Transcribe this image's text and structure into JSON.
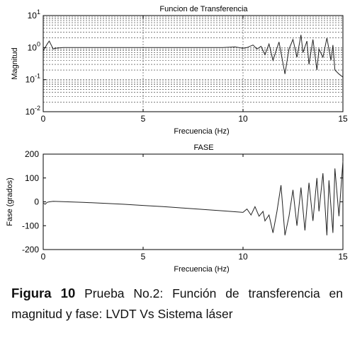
{
  "chart_data": [
    {
      "type": "line",
      "title": "Funcion de Transferencia",
      "xlabel": "Frecuencia (Hz)",
      "ylabel": "Magnitud",
      "xlim": [
        0,
        15
      ],
      "ylim": [
        0.01,
        10
      ],
      "yscale": "log",
      "grid": true,
      "xticks": [
        "0",
        "5",
        "10",
        "15"
      ],
      "yticks": [
        {
          "base": "10",
          "exp": "1",
          "value": 10
        },
        {
          "base": "10",
          "exp": "0",
          "value": 1
        },
        {
          "base": "10",
          "exp": "-1",
          "value": 0.1
        },
        {
          "base": "10",
          "exp": "-2",
          "value": 0.01
        }
      ],
      "series": [
        {
          "x": [
            0,
            0.1,
            0.2,
            0.3,
            0.4,
            0.5,
            0.6,
            1,
            2,
            3,
            4,
            5,
            6,
            7,
            8,
            9,
            9.6,
            10,
            10.2,
            10.5,
            10.7,
            10.9,
            11.1,
            11.3,
            11.5,
            11.8,
            12.1,
            12.3,
            12.5,
            12.7,
            12.9,
            13.0,
            13.2,
            13.3,
            13.5,
            13.7,
            13.8,
            14.0,
            14.2,
            14.4,
            14.5,
            14.6,
            14.8,
            15.0
          ],
          "y": [
            0.8,
            1.0,
            1.3,
            1.6,
            1.2,
            0.9,
            0.95,
            1.0,
            1.0,
            1.0,
            1.0,
            1.0,
            1.0,
            1.0,
            1.0,
            1.0,
            1.05,
            0.95,
            1.0,
            1.2,
            0.9,
            1.1,
            0.6,
            1.3,
            0.4,
            1.5,
            0.15,
            0.9,
            1.8,
            0.5,
            2.5,
            0.7,
            1.6,
            0.3,
            1.8,
            0.2,
            0.9,
            0.5,
            2.0,
            0.4,
            1.2,
            0.2,
            0.15,
            0.12
          ]
        }
      ]
    },
    {
      "type": "line",
      "title": "FASE",
      "xlabel": "Frecuencia (Hz)",
      "ylabel": "Fase (grados)",
      "xlim": [
        0,
        15
      ],
      "ylim": [
        -200,
        200
      ],
      "grid": false,
      "xticks": [
        "0",
        "5",
        "10",
        "15"
      ],
      "yticks": [
        "200",
        "100",
        "0",
        "-100",
        "-200"
      ],
      "series": [
        {
          "x": [
            0,
            0.1,
            0.2,
            0.3,
            0.5,
            1,
            2,
            3,
            4,
            5,
            6,
            7,
            8,
            9,
            10,
            10.2,
            10.4,
            10.6,
            10.8,
            11.0,
            11.1,
            11.3,
            11.5,
            11.7,
            11.9,
            12.1,
            12.3,
            12.5,
            12.7,
            12.9,
            13.1,
            13.3,
            13.5,
            13.7,
            13.8,
            14.0,
            14.2,
            14.3,
            14.5,
            14.6,
            14.8,
            15.0
          ],
          "y": [
            -5,
            -10,
            -2,
            0,
            2,
            1,
            -2,
            -6,
            -10,
            -15,
            -20,
            -26,
            -32,
            -38,
            -44,
            -30,
            -55,
            -20,
            -60,
            -40,
            -80,
            -55,
            -130,
            -40,
            70,
            -140,
            -60,
            50,
            -100,
            60,
            -120,
            80,
            -80,
            100,
            -40,
            120,
            -140,
            90,
            -130,
            140,
            -60,
            170
          ]
        }
      ]
    }
  ],
  "caption": {
    "label": "Figura  10",
    "text": " Prueba No.2: Función de transferencia en magnitud y fase: LVDT Vs Sistema láser"
  }
}
